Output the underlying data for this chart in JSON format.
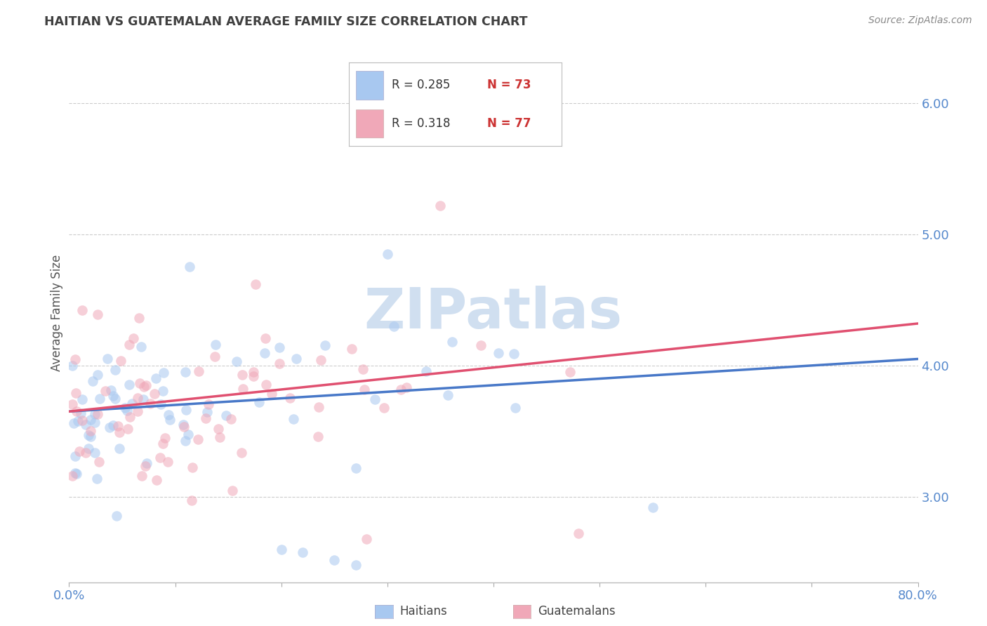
{
  "title": "HAITIAN VS GUATEMALAN AVERAGE FAMILY SIZE CORRELATION CHART",
  "source": "Source: ZipAtlas.com",
  "ylabel": "Average Family Size",
  "xmin": 0.0,
  "xmax": 80.0,
  "ymin": 2.35,
  "ymax": 6.45,
  "yticks": [
    3.0,
    4.0,
    5.0,
    6.0
  ],
  "legend_r1": "R = 0.285",
  "legend_n1": "N = 73",
  "legend_r2": "R = 0.318",
  "legend_n2": "N = 77",
  "color_haiti": "#a8c8f0",
  "color_guatemala": "#f0a8b8",
  "line_color_haiti": "#4878c8",
  "line_color_guatemala": "#e05070",
  "axis_label_color": "#5588cc",
  "title_color": "#404040",
  "watermark_color": "#d0dff0",
  "haiti_trend": [
    3.65,
    4.05
  ],
  "guat_trend": [
    3.65,
    4.32
  ]
}
